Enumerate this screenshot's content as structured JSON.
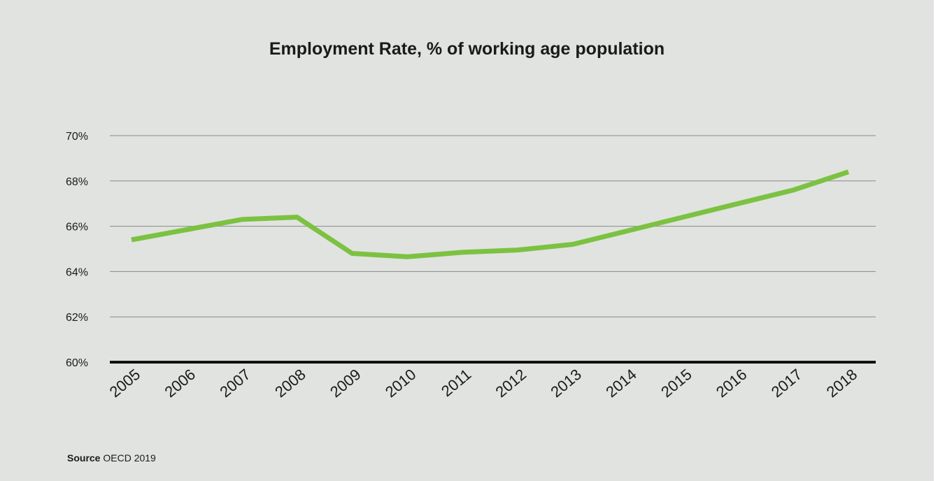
{
  "chart_data": {
    "type": "line",
    "title": "Employment Rate, % of working age population",
    "xlabel": "",
    "ylabel": "",
    "x": [
      "2005",
      "2006",
      "2007",
      "2008",
      "2009",
      "2010",
      "2011",
      "2012",
      "2013",
      "2014",
      "2015",
      "2016",
      "2017",
      "2018"
    ],
    "series": [
      {
        "values": [
          65.4,
          65.85,
          66.3,
          66.4,
          64.8,
          64.65,
          64.85,
          64.95,
          65.2,
          65.8,
          66.4,
          67.0,
          67.6,
          68.4
        ],
        "color": "#7cc242"
      }
    ],
    "ylim": [
      60,
      70
    ],
    "yticks": [
      {
        "value": 70,
        "label": "70%"
      },
      {
        "value": 68,
        "label": "68%"
      },
      {
        "value": 66,
        "label": "66%"
      },
      {
        "value": 64,
        "label": "64%"
      },
      {
        "value": 62,
        "label": "62%"
      },
      {
        "value": 60,
        "label": "60%"
      }
    ],
    "grid": true,
    "gridline_color": "#8a8a8a",
    "baseline_color": "#111111",
    "legend": "none"
  },
  "source": {
    "label": "Source",
    "text": "OECD 2019"
  },
  "colors": {
    "background": "#e1e3e0",
    "line": "#7cc242",
    "text": "#1a1a1a"
  }
}
